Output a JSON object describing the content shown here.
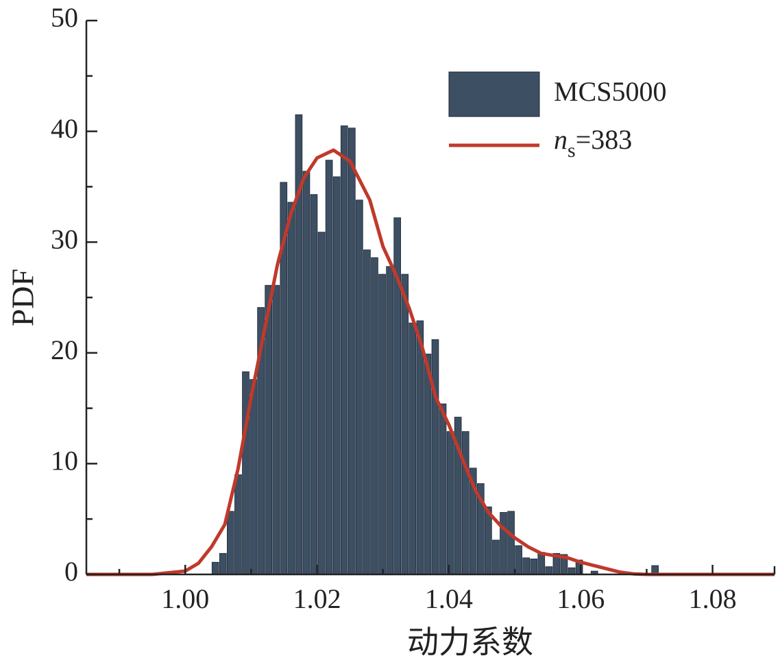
{
  "chart_data": {
    "type": "histogram",
    "xlabel": "动力系数",
    "ylabel": "PDF",
    "xlim": [
      0.985,
      1.0894
    ],
    "ylim": [
      0,
      50
    ],
    "xticks": [
      {
        "value": 1.0,
        "label": "1.00"
      },
      {
        "value": 1.02,
        "label": "1.02"
      },
      {
        "value": 1.04,
        "label": "1.04"
      },
      {
        "value": 1.06,
        "label": "1.06"
      },
      {
        "value": 1.08,
        "label": "1.08"
      }
    ],
    "yticks": [
      0,
      10,
      20,
      30,
      40,
      50
    ],
    "legend": "top-right",
    "histogram": {
      "name": "MCS5000",
      "color": "#3d4f63",
      "bins": [
        1.004,
        1.00515,
        1.0063,
        1.00745,
        1.0086,
        1.00975,
        1.0109,
        1.01205,
        1.0132,
        1.01435,
        1.0155,
        1.01665,
        1.0178,
        1.01895,
        1.0201,
        1.02125,
        1.0224,
        1.02355,
        1.0247,
        1.02585,
        1.027,
        1.02815,
        1.0293,
        1.03045,
        1.0316,
        1.03275,
        1.0339,
        1.03505,
        1.0362,
        1.03735,
        1.0385,
        1.03965,
        1.0408,
        1.04195,
        1.0431,
        1.04425,
        1.0454,
        1.04655,
        1.0477,
        1.04885,
        1.05,
        1.05115,
        1.0523,
        1.05345,
        1.0546,
        1.05575,
        1.0569,
        1.05805,
        1.0592,
        1.06035,
        1.0615,
        1.06265,
        1.0638,
        1.06495,
        1.0661,
        1.06725,
        1.0684,
        1.06955,
        1.0707,
        1.07185
      ],
      "counts": [
        1.1,
        1.9,
        5.7,
        9.0,
        18.3,
        17.6,
        24.1,
        26.1,
        26.1,
        35.4,
        33.6,
        41.5,
        36.4,
        34.3,
        30.9,
        37.4,
        35.9,
        40.5,
        40.3,
        33.8,
        29.3,
        28.6,
        27.1,
        27.8,
        32.2,
        27.1,
        22.7,
        22.9,
        19.9,
        21.2,
        15.4,
        12.9,
        14.2,
        12.9,
        9.6,
        8.2,
        6.1,
        3.1,
        5.6,
        5.7,
        2.6,
        1.5,
        1.4,
        2.0,
        0.7,
        1.9,
        1.8,
        0.6,
        1.3,
        0,
        0.3,
        0,
        0,
        0,
        0,
        0,
        0,
        0,
        0.8
      ]
    },
    "series": [
      {
        "name": "ns=383",
        "color": "#c0392b",
        "x": [
          0.985,
          0.995,
          1.0,
          1.002,
          1.004,
          1.006,
          1.008,
          1.01,
          1.012,
          1.014,
          1.016,
          1.018,
          1.02,
          1.0225,
          1.025,
          1.028,
          1.03,
          1.032,
          1.034,
          1.036,
          1.038,
          1.04,
          1.042,
          1.044,
          1.046,
          1.048,
          1.05,
          1.052,
          1.054,
          1.056,
          1.058,
          1.06,
          1.062,
          1.064,
          1.066,
          1.068,
          1.07,
          1.08,
          1.0894
        ],
        "values": [
          0,
          0,
          0.3,
          1.0,
          2.5,
          4.5,
          9.5,
          16,
          22,
          28,
          32.5,
          35.8,
          37.6,
          38.3,
          37.3,
          33.8,
          29.6,
          27,
          24,
          20.4,
          16,
          13.5,
          10.5,
          7.6,
          5.6,
          4.3,
          3.3,
          2.5,
          1.9,
          1.7,
          1.5,
          1.1,
          0.8,
          0.5,
          0.2,
          0.05,
          0,
          0,
          0
        ]
      }
    ]
  }
}
